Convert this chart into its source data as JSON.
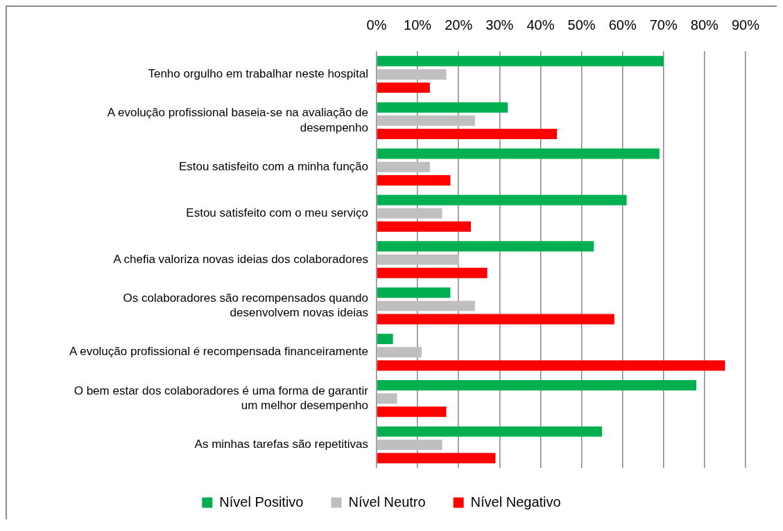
{
  "chart_data": {
    "type": "bar",
    "orientation": "horizontal",
    "categories": [
      "Tenho orgulho em trabalhar neste hospital",
      "A evolução profissional baseia-se na avaliação de\ndesempenho",
      "Estou satisfeito com a minha função",
      "Estou satisfeito com o meu serviço",
      "A chefia valoriza novas ideias dos colaboradores",
      "Os colaboradores são recompensados quando\ndesenvolvem novas ideias",
      "A evolução profissional é recompensada financeiramente",
      "O bem estar dos colaboradores é uma forma de garantir\num melhor desempenho",
      "As minhas tarefas são repetitivas"
    ],
    "series": [
      {
        "name": "Nível Positivo",
        "color": "#00b050",
        "values": [
          70,
          32,
          69,
          61,
          53,
          18,
          4,
          78,
          55
        ]
      },
      {
        "name": "Nível Neutro",
        "color": "#bfbfbf",
        "values": [
          17,
          24,
          13,
          16,
          20,
          24,
          11,
          5,
          16
        ]
      },
      {
        "name": "Nível Negativo",
        "color": "#ff0000",
        "values": [
          13,
          44,
          18,
          23,
          27,
          58,
          85,
          17,
          29
        ]
      }
    ],
    "xlim": [
      0,
      90
    ],
    "xticks": [
      {
        "value": 0,
        "label": "0%"
      },
      {
        "value": 10,
        "label": "10%"
      },
      {
        "value": 20,
        "label": "20%"
      },
      {
        "value": 30,
        "label": "30%"
      },
      {
        "value": 40,
        "label": "40%"
      },
      {
        "value": 50,
        "label": "50%"
      },
      {
        "value": 60,
        "label": "60%"
      },
      {
        "value": 70,
        "label": "70%"
      },
      {
        "value": 80,
        "label": "80%"
      },
      {
        "value": 90,
        "label": "90%"
      }
    ],
    "grid": "x",
    "legend": "bottom"
  }
}
